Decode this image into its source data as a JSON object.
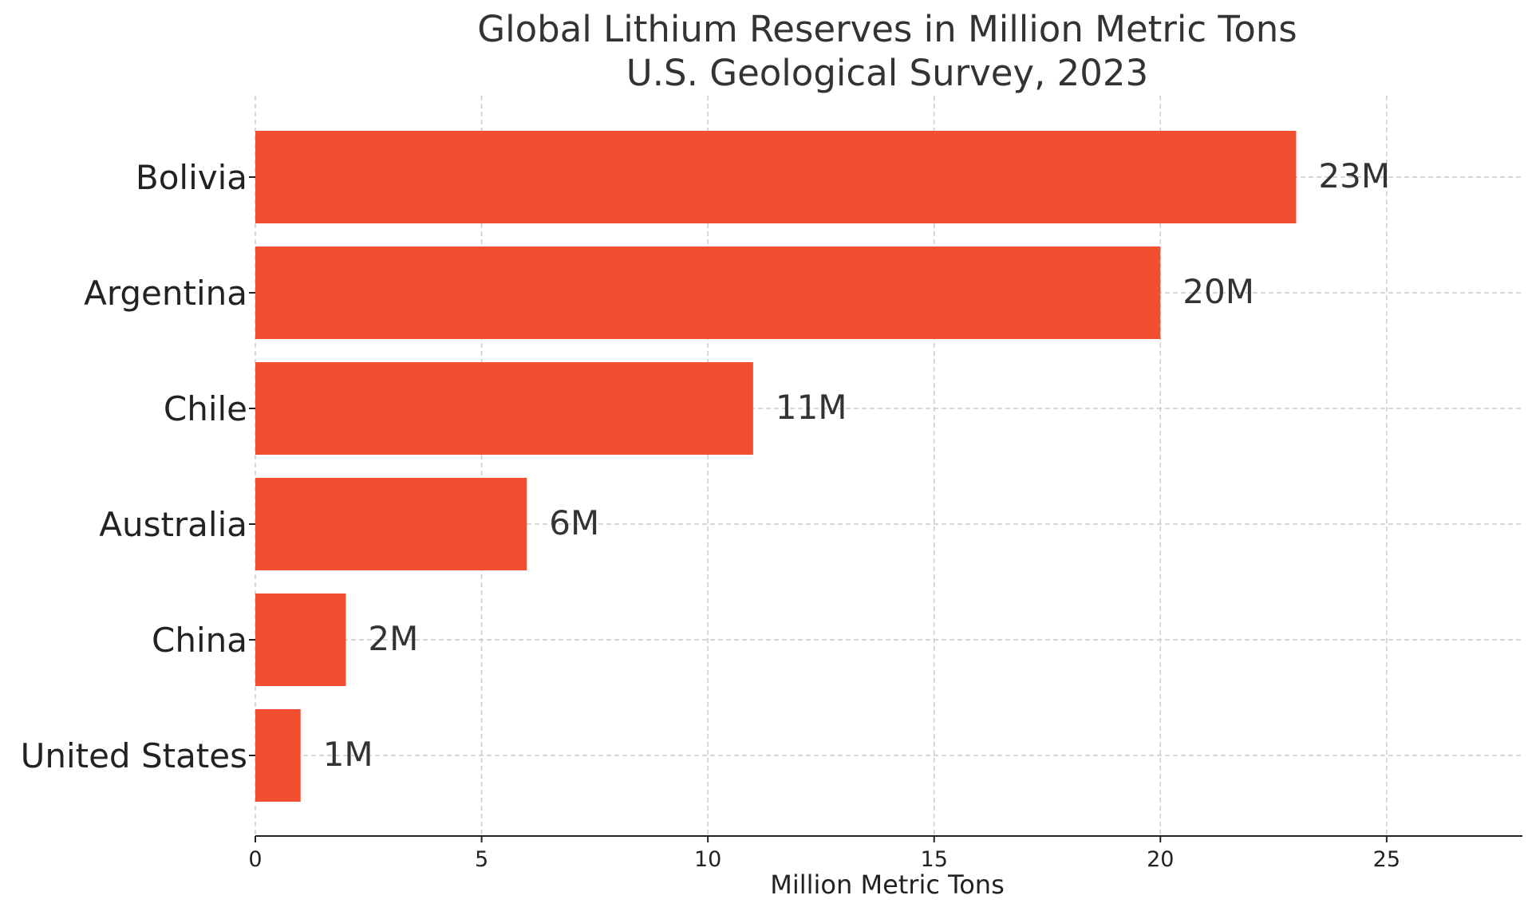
{
  "chart_data": {
    "type": "bar",
    "orientation": "horizontal",
    "title": "Global Lithium Reserves in Million Metric Tons",
    "subtitle": "U.S. Geological Survey, 2023",
    "xlabel": "Million Metric Tons",
    "ylabel": "",
    "categories": [
      "Bolivia",
      "Argentina",
      "Chile",
      "Australia",
      "China",
      "United States"
    ],
    "values": [
      23,
      20,
      11,
      6,
      2,
      1
    ],
    "data_labels": [
      "23M",
      "20M",
      "11M",
      "6M",
      "2M",
      "1M"
    ],
    "xlim": [
      0,
      28
    ],
    "xticks": [
      0,
      5,
      10,
      15,
      20,
      25
    ],
    "grid": true,
    "bar_color": "#f24f30"
  }
}
